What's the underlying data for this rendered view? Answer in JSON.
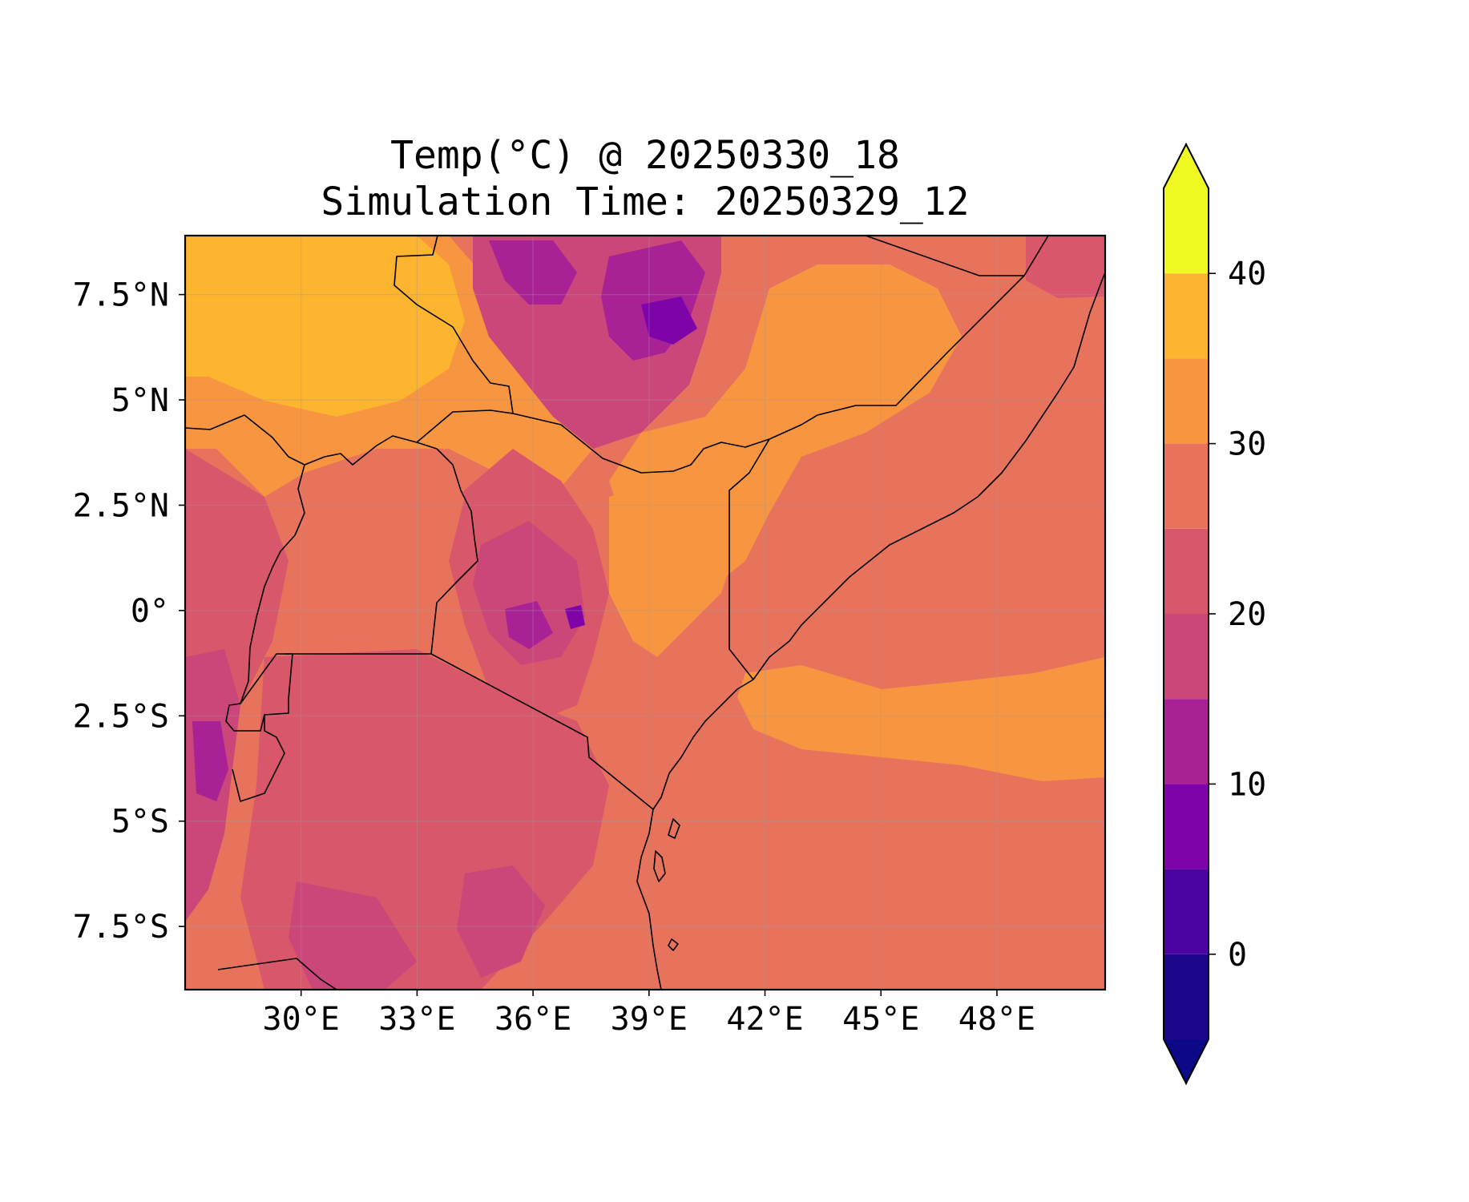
{
  "title": {
    "line1": "Temp(°C) @ 20250330_18",
    "line2": "Simulation Time: 20250329_12"
  },
  "map": {
    "lon_range": [
      27.0,
      50.8
    ],
    "lat_range": [
      -9.0,
      8.9
    ],
    "lon_ticks": [
      {
        "value": 30,
        "label": "30°E"
      },
      {
        "value": 33,
        "label": "33°E"
      },
      {
        "value": 36,
        "label": "36°E"
      },
      {
        "value": 39,
        "label": "39°E"
      },
      {
        "value": 42,
        "label": "42°E"
      },
      {
        "value": 45,
        "label": "45°E"
      },
      {
        "value": 48,
        "label": "48°E"
      }
    ],
    "lat_ticks": [
      {
        "value": 7.5,
        "label": "7.5°N"
      },
      {
        "value": 5,
        "label": "5°N"
      },
      {
        "value": 2.5,
        "label": "2.5°N"
      },
      {
        "value": 0,
        "label": "0°"
      },
      {
        "value": -2.5,
        "label": "2.5°S"
      },
      {
        "value": -5,
        "label": "5°S"
      },
      {
        "value": -7.5,
        "label": "7.5°S"
      }
    ],
    "gridlines": true,
    "field": "temperature",
    "units": "°C"
  },
  "colorbar": {
    "levels": [
      -5,
      0,
      5,
      10,
      15,
      20,
      25,
      30,
      35,
      40,
      45
    ],
    "colors": [
      "#1b068c",
      "#4b03a1",
      "#7e03a8",
      "#a82296",
      "#cb4679",
      "#d8576b",
      "#e8735d",
      "#f89540",
      "#fdb42f",
      "#f0f921"
    ],
    "under_color": "#0d0887",
    "over_color": "#f0f921",
    "extend": "both",
    "ticks": [
      {
        "value": 0,
        "label": "0"
      },
      {
        "value": 10,
        "label": "10"
      },
      {
        "value": 20,
        "label": "20"
      },
      {
        "value": 30,
        "label": "30"
      },
      {
        "value": 40,
        "label": "40"
      }
    ]
  }
}
